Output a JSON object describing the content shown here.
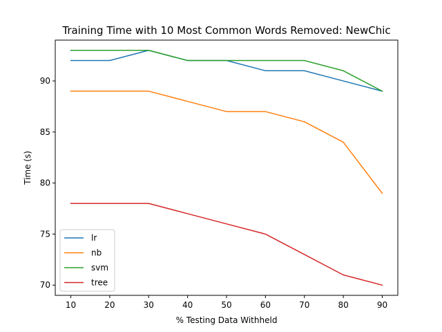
{
  "chart_data": {
    "type": "line",
    "title": "Training Time with 10 Most Common Words Removed: NewChic",
    "xlabel": "% Testing Data Withheld",
    "ylabel": "Time (s)",
    "x": [
      10,
      20,
      30,
      40,
      50,
      60,
      70,
      80,
      90
    ],
    "xticks": [
      "10",
      "20",
      "30",
      "40",
      "50",
      "60",
      "70",
      "80",
      "90"
    ],
    "yticks": [
      "70",
      "75",
      "80",
      "85",
      "90"
    ],
    "xlim": [
      6,
      94
    ],
    "ylim": [
      69,
      94
    ],
    "grid": false,
    "legend_position": "lower-left",
    "series": [
      {
        "name": "lr",
        "color": "#1f77b4",
        "values": [
          92,
          92,
          93,
          92,
          92,
          91,
          91,
          90,
          89
        ]
      },
      {
        "name": "nb",
        "color": "#ff7f0e",
        "values": [
          89,
          89,
          89,
          88,
          87,
          87,
          86,
          84,
          79
        ]
      },
      {
        "name": "svm",
        "color": "#2ca02c",
        "values": [
          93,
          93,
          93,
          92,
          92,
          92,
          92,
          91,
          89
        ]
      },
      {
        "name": "tree",
        "color": "#d62728",
        "values": [
          78,
          78,
          78,
          77,
          76,
          75,
          73,
          71,
          70
        ]
      }
    ]
  }
}
